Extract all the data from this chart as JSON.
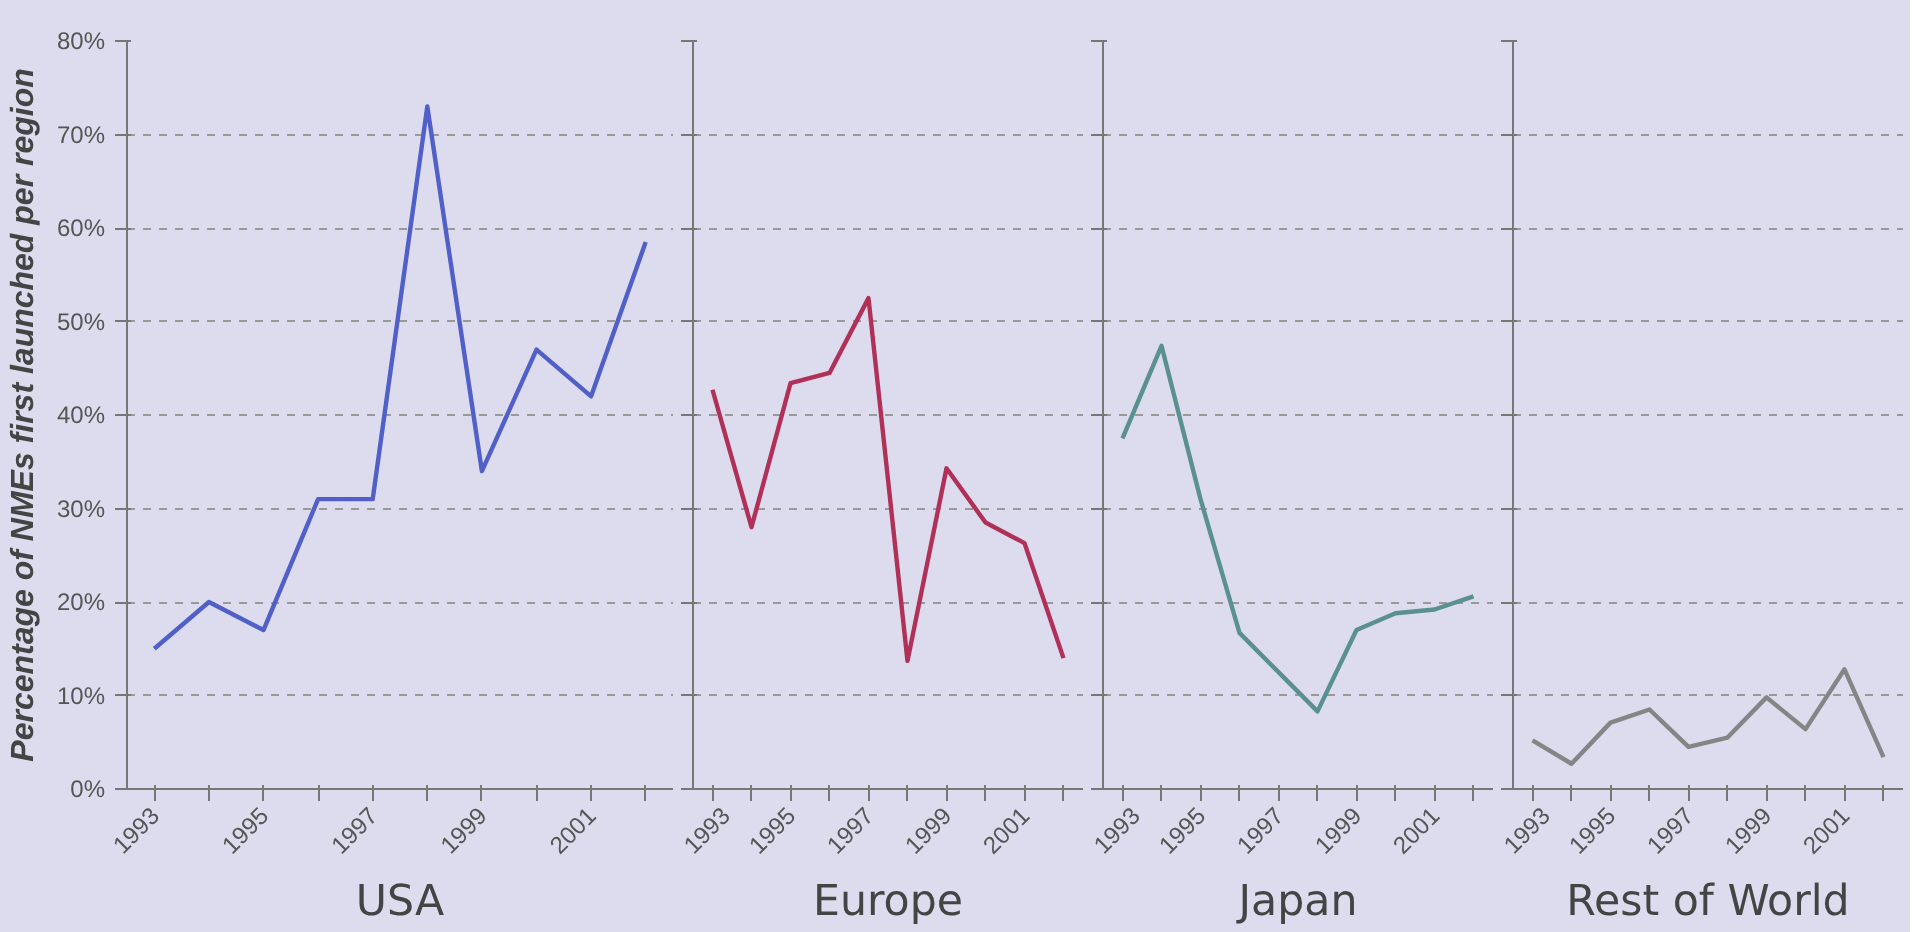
{
  "chart_data": [
    {
      "type": "line",
      "xlabel": "USA",
      "ylabel": "Percentage of NMEs first launched per region",
      "categories": [
        "1993",
        null,
        "1995",
        null,
        "1997",
        null,
        "1999",
        null,
        "2001",
        null
      ],
      "series": [
        {
          "color": "#5060c8",
          "values": [
            15,
            20,
            17,
            31,
            31,
            73,
            34,
            47,
            42,
            58.5
          ]
        }
      ],
      "ylim": [
        0,
        80
      ],
      "yticks": [
        {
          "value": 0,
          "label": "0%"
        },
        {
          "value": 10,
          "label": "10%"
        },
        {
          "value": 20,
          "label": "20%"
        },
        {
          "value": 30,
          "label": "30%"
        },
        {
          "value": 40,
          "label": "40%"
        },
        {
          "value": 50,
          "label": "50%"
        },
        {
          "value": 60,
          "label": "60%"
        },
        {
          "value": 70,
          "label": "70%"
        },
        {
          "value": 80,
          "label": "80%"
        }
      ],
      "grid": "y",
      "line_style": "solid"
    },
    {
      "type": "line",
      "xlabel": "Europe",
      "categories": [
        "1993",
        null,
        "1995",
        null,
        "1997",
        null,
        "1999",
        null,
        "2001",
        null
      ],
      "series": [
        {
          "color": "#b03058",
          "values": [
            42.7,
            28,
            43.4,
            44.5,
            52.5,
            13.7,
            34.3,
            28.5,
            26.3,
            14
          ]
        }
      ],
      "ylim": [
        0,
        80
      ],
      "yticks": [
        {
          "value": 0,
          "label": null
        },
        {
          "value": 10,
          "label": null
        },
        {
          "value": 20,
          "label": null
        },
        {
          "value": 30,
          "label": null
        },
        {
          "value": 40,
          "label": null
        },
        {
          "value": 50,
          "label": null
        },
        {
          "value": 60,
          "label": null
        },
        {
          "value": 70,
          "label": null
        },
        {
          "value": 80,
          "label": null
        }
      ],
      "grid": "y",
      "line_style": "solid",
      "tick_labels": "x"
    },
    {
      "type": "line",
      "xlabel": "Japan",
      "categories": [
        "1993",
        null,
        "1995",
        null,
        "1997",
        null,
        "1999",
        null,
        "2001",
        null
      ],
      "series": [
        {
          "color": "#5a9090",
          "values": [
            37.5,
            47.4,
            31,
            16.7,
            12.5,
            8.3,
            17,
            18.8,
            19.2,
            20.6
          ]
        }
      ],
      "ylim": [
        0,
        80
      ],
      "yticks": [
        {
          "value": 0,
          "label": null
        },
        {
          "value": 10,
          "label": null
        },
        {
          "value": 20,
          "label": null
        },
        {
          "value": 30,
          "label": null
        },
        {
          "value": 40,
          "label": null
        },
        {
          "value": 50,
          "label": null
        },
        {
          "value": 60,
          "label": null
        },
        {
          "value": 70,
          "label": null
        },
        {
          "value": 80,
          "label": null
        }
      ],
      "grid": "y",
      "line_style": "solid",
      "tick_labels": "x"
    },
    {
      "type": "line",
      "xlabel": "Rest of World",
      "categories": [
        "1993",
        null,
        "1995",
        null,
        "1997",
        null,
        "1999",
        null,
        "2001",
        null
      ],
      "series": [
        {
          "color": "#858585",
          "values": [
            5.2,
            2.7,
            7.1,
            8.5,
            4.5,
            5.5,
            9.8,
            6.4,
            12.8,
            3.4
          ]
        }
      ],
      "ylim": [
        0,
        80
      ],
      "yticks": [
        {
          "value": 0,
          "label": null
        },
        {
          "value": 10,
          "label": null
        },
        {
          "value": 20,
          "label": null
        },
        {
          "value": 30,
          "label": null
        },
        {
          "value": 40,
          "label": null
        },
        {
          "value": 50,
          "label": null
        },
        {
          "value": 60,
          "label": null
        },
        {
          "value": 70,
          "label": null
        },
        {
          "value": 80,
          "label": null
        }
      ],
      "grid": "y",
      "line_style": "solid",
      "tick_labels": "x"
    }
  ]
}
